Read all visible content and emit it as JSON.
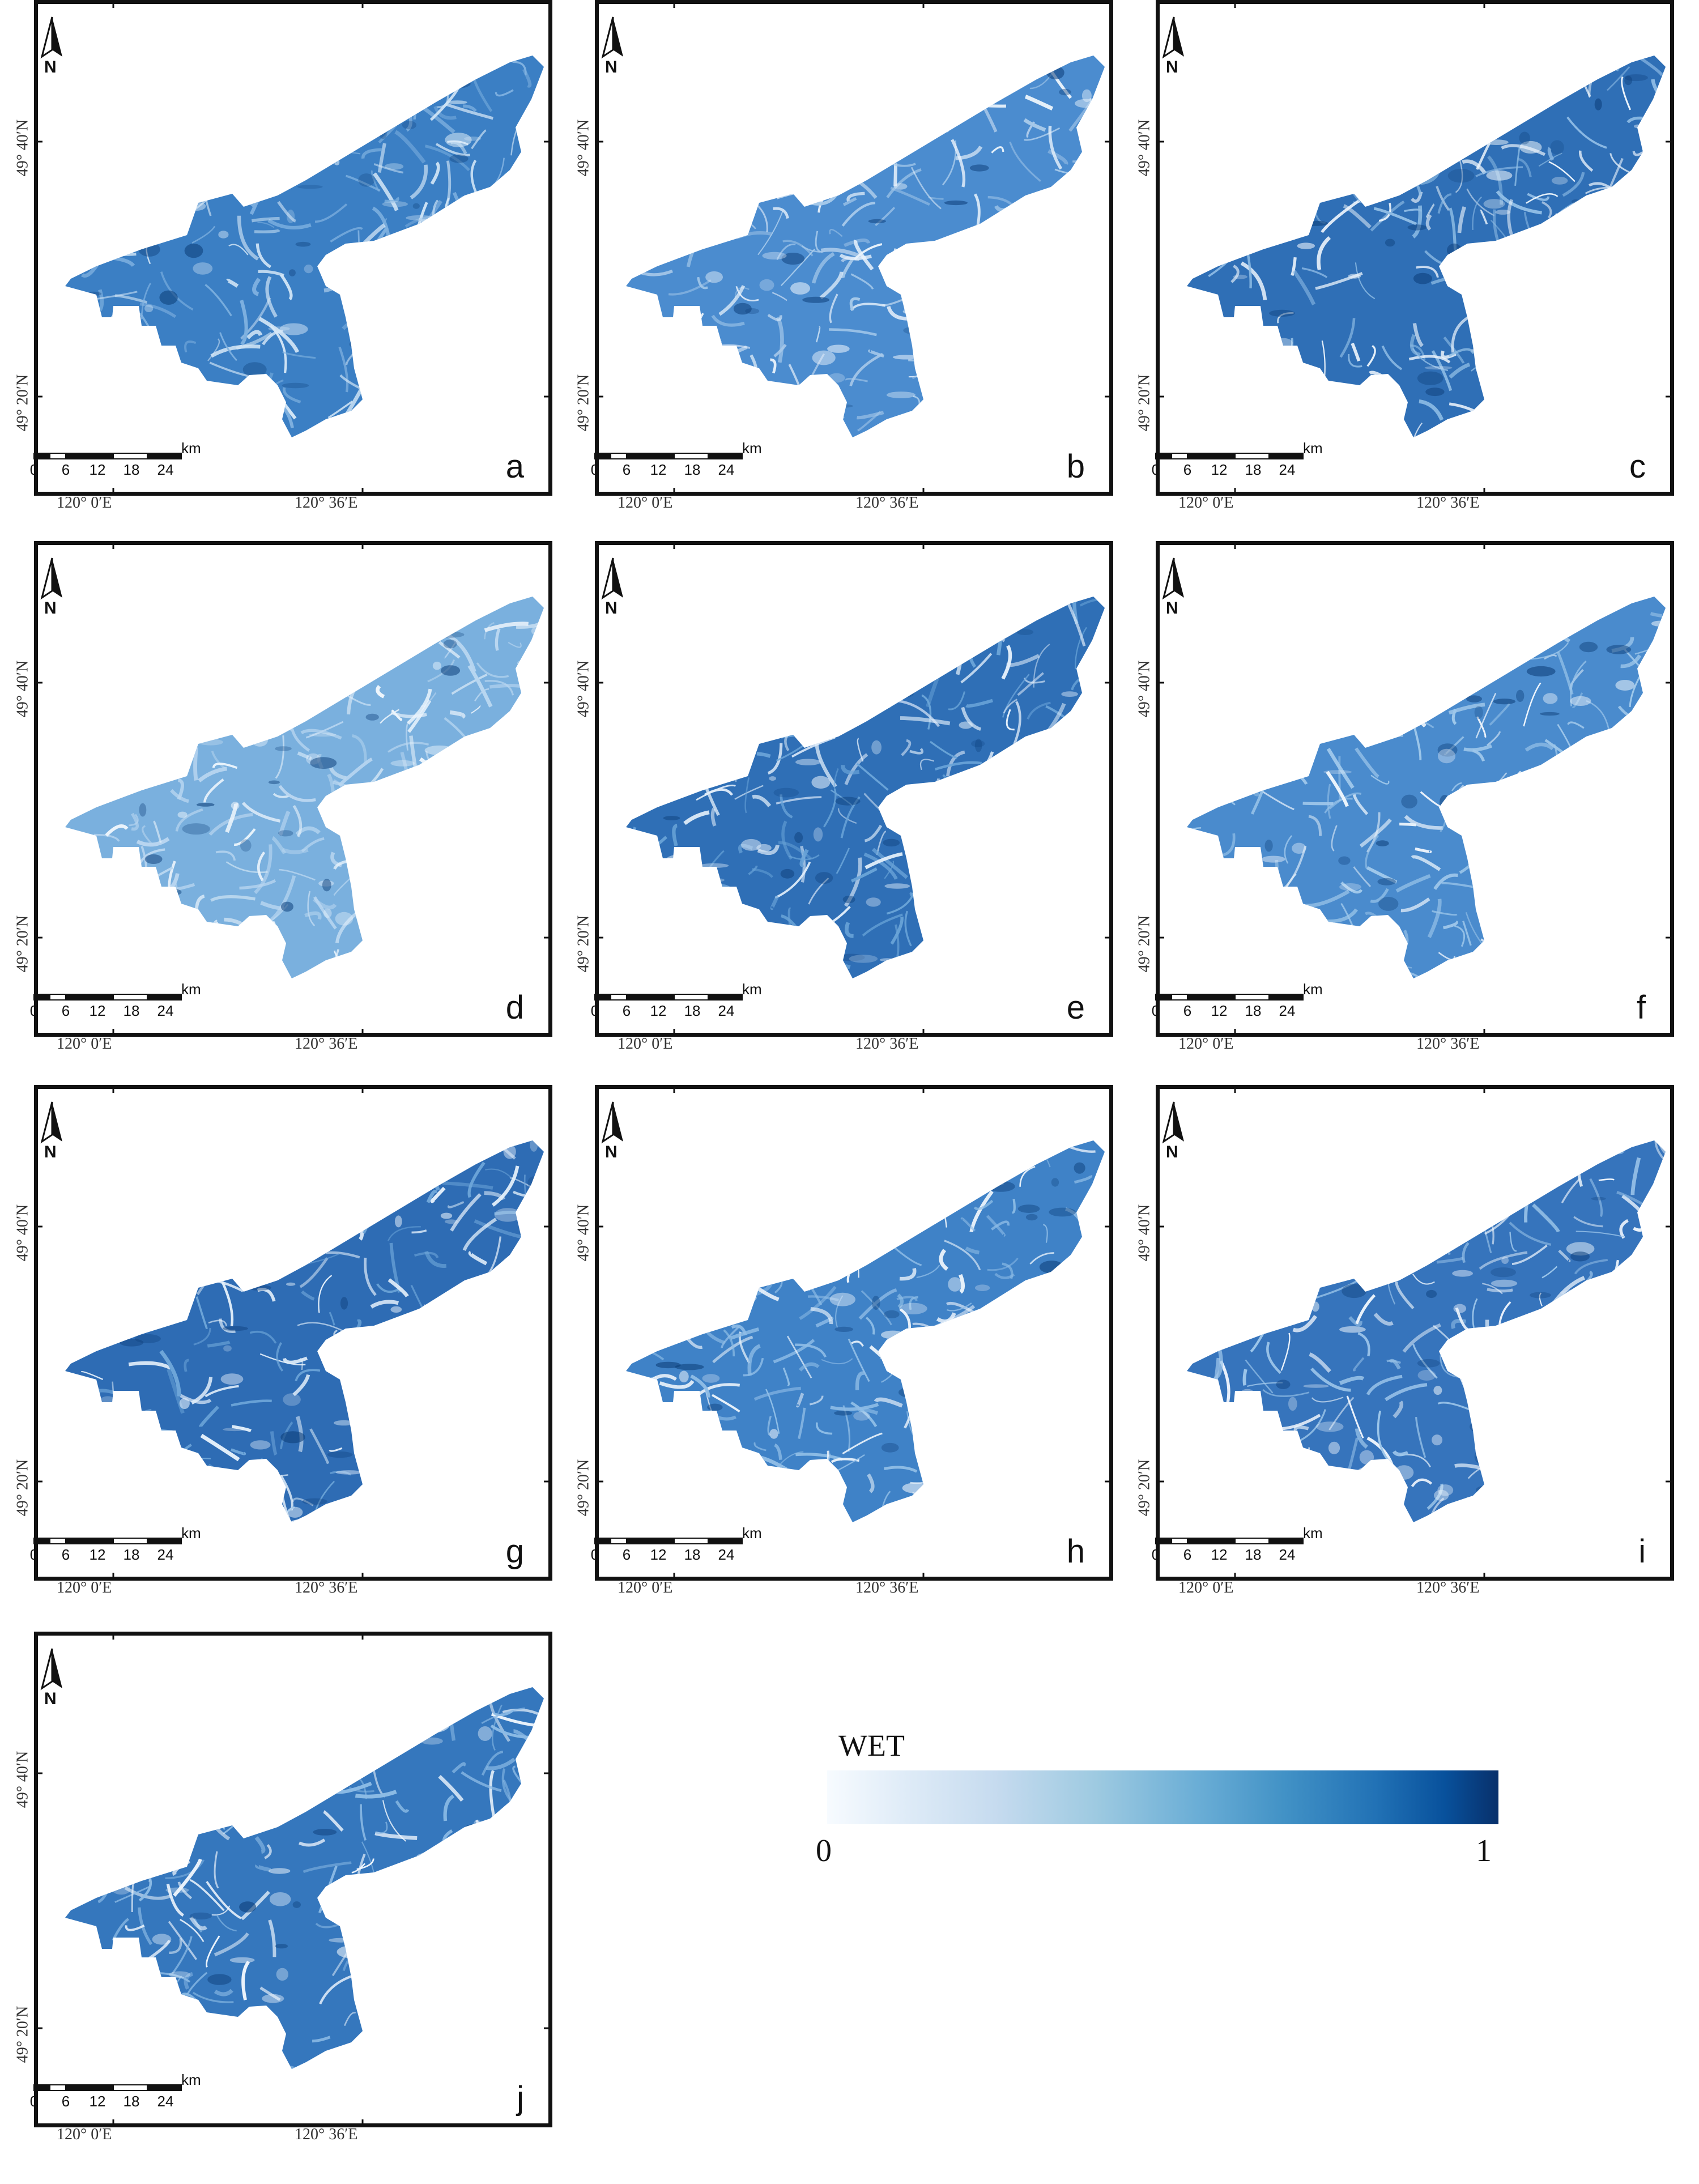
{
  "panels": [
    {
      "id": "a",
      "letter": "a"
    },
    {
      "id": "b",
      "letter": "b"
    },
    {
      "id": "c",
      "letter": "c"
    },
    {
      "id": "d",
      "letter": "d"
    },
    {
      "id": "e",
      "letter": "e"
    },
    {
      "id": "f",
      "letter": "f"
    },
    {
      "id": "g",
      "letter": "g"
    },
    {
      "id": "h",
      "letter": "h"
    },
    {
      "id": "i",
      "letter": "i"
    },
    {
      "id": "j",
      "letter": "j"
    }
  ],
  "map": {
    "north_label": "N",
    "lat_labels": [
      "49° 40′N",
      "49° 20′N"
    ],
    "lon_labels": [
      "120° 0′E",
      "120° 36′E"
    ],
    "scale": {
      "unit": "km",
      "ticks": [
        "0",
        "6",
        "12",
        "18",
        "24"
      ]
    }
  },
  "legend": {
    "title": "WET",
    "min_label": "0",
    "max_label": "1",
    "colors": [
      "#f7fbff",
      "#c6dbef",
      "#6baed6",
      "#2171b5",
      "#08306b"
    ]
  },
  "panel_shading": {
    "a": {
      "base": "#3b7fc4",
      "shade": "#7fb1e0",
      "light": "#d6e8f7"
    },
    "b": {
      "base": "#4b8ccf",
      "shade": "#a6c9ea",
      "light": "#e9f2fb"
    },
    "c": {
      "base": "#2f6fb6",
      "shade": "#8dbbe4",
      "light": "#eef5fc"
    },
    "d": {
      "base": "#7ab0de",
      "shade": "#b9d6f0",
      "light": "#edf5fc"
    },
    "e": {
      "base": "#2f6fb6",
      "shade": "#6aa4d8",
      "light": "#e2eefa"
    },
    "f": {
      "base": "#4a8bcd",
      "shade": "#9ec7ea",
      "light": "#eef5fc"
    },
    "g": {
      "base": "#2e6cb4",
      "shade": "#6ea6d9",
      "light": "#e3effa"
    },
    "h": {
      "base": "#3f82c7",
      "shade": "#8fbde6",
      "light": "#f0f6fc"
    },
    "i": {
      "base": "#3674bc",
      "shade": "#9dc6ea",
      "light": "#eef5fc"
    },
    "j": {
      "base": "#3577bd",
      "shade": "#8cbbe5",
      "light": "#eef5fc"
    }
  }
}
